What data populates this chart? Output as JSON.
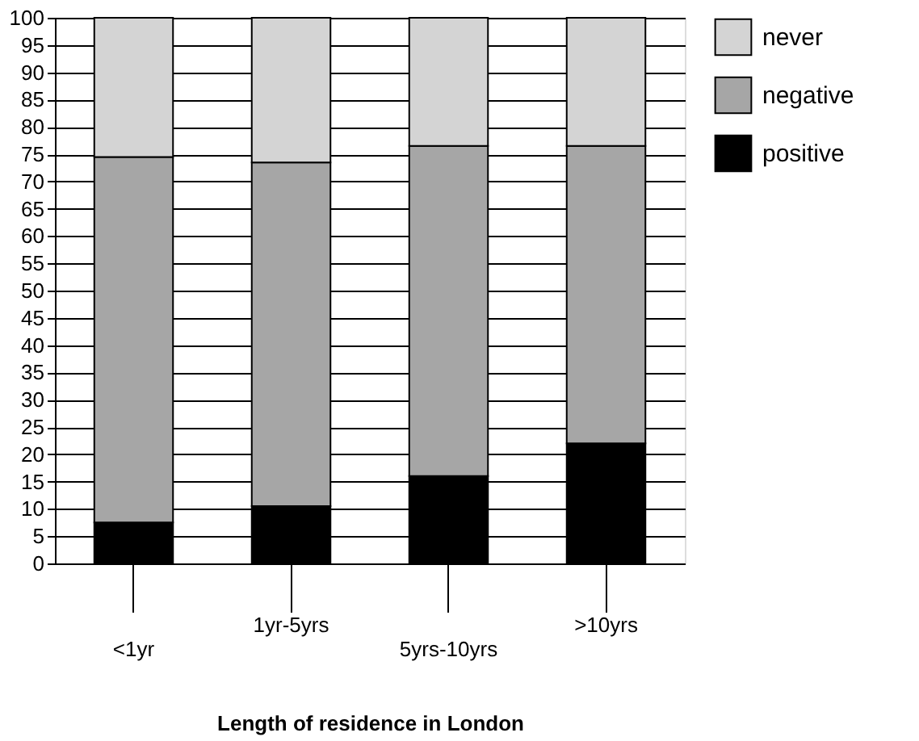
{
  "chart_data": {
    "type": "bar",
    "stacked": true,
    "xlabel": "Length of residence in London",
    "categories": [
      "<1yr",
      "1yr-5yrs",
      "5yrs-10yrs",
      ">10yrs"
    ],
    "series": [
      {
        "name": "positive",
        "color": "#000000",
        "values": [
          7.5,
          10.5,
          16,
          22
        ]
      },
      {
        "name": "negative",
        "color": "#a6a6a6",
        "values": [
          67,
          63,
          60.5,
          54.5
        ]
      },
      {
        "name": "never",
        "color": "#d4d4d4",
        "values": [
          25.5,
          26.5,
          23.5,
          23.5
        ]
      }
    ],
    "ylim": [
      0,
      100
    ],
    "yticks": [
      0,
      5,
      10,
      15,
      20,
      25,
      30,
      35,
      40,
      45,
      50,
      55,
      60,
      65,
      70,
      75,
      80,
      85,
      90,
      95,
      100
    ],
    "grid": "y",
    "legend": "right"
  }
}
